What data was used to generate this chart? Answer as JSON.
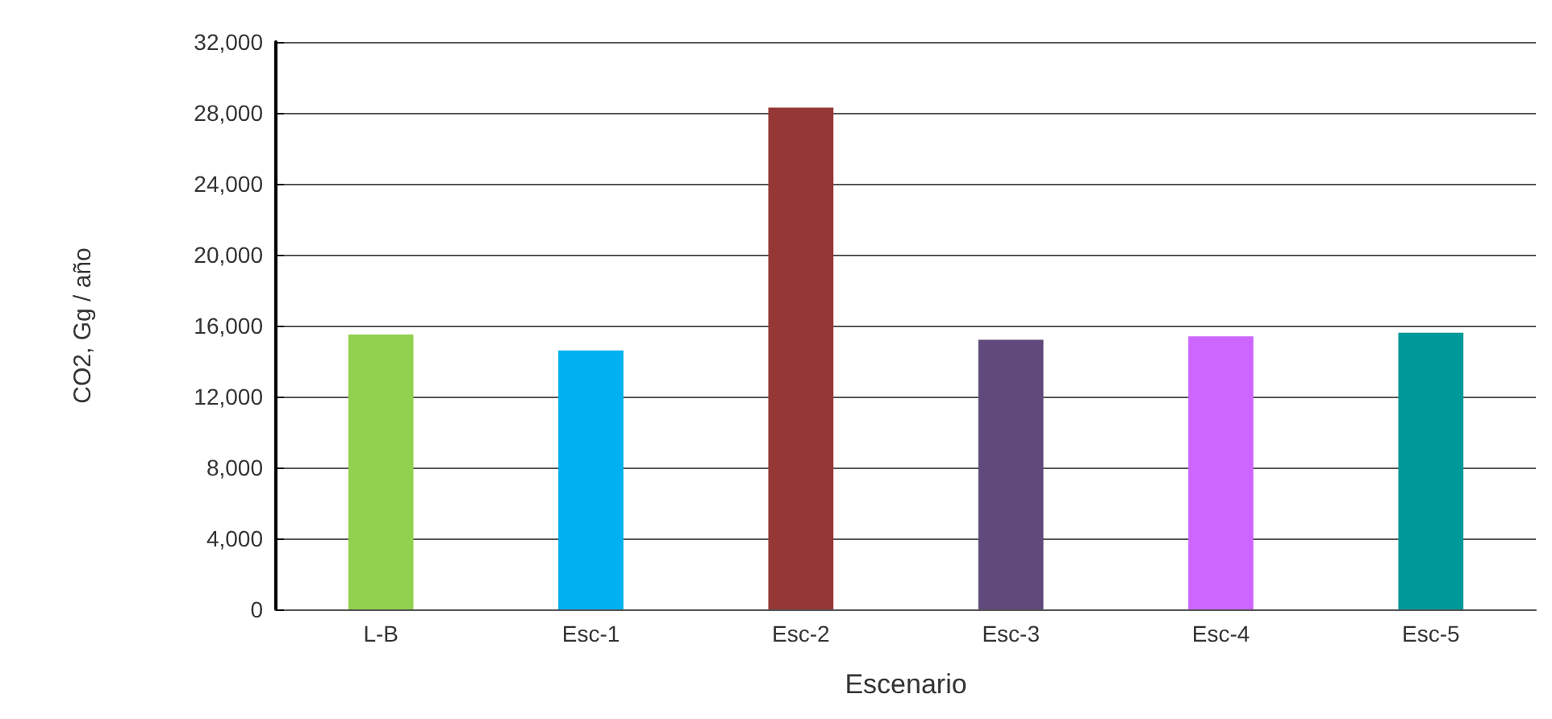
{
  "chart_data": {
    "type": "bar",
    "xlabel": "Escenario",
    "ylabel": "CO2, Gg / año",
    "categories": [
      "L-B",
      "Esc-1",
      "Esc-2",
      "Esc-3",
      "Esc-4",
      "Esc-5"
    ],
    "values": [
      15500,
      14600,
      28300,
      15200,
      15400,
      15600
    ],
    "colors": [
      "#92d050",
      "#00b0f0",
      "#953735",
      "#604a7b",
      "#cc66ff",
      "#009999"
    ],
    "ylim": [
      0,
      32000
    ],
    "yticks": [
      0,
      {
        "value": 4000,
        "label": "4,000"
      },
      {
        "value": 8000,
        "label": "8,000"
      },
      {
        "value": 12000,
        "label": "12,000"
      },
      {
        "value": 16000,
        "label": "16,000"
      },
      {
        "value": 20000,
        "label": "20,000"
      },
      {
        "value": 24000,
        "label": "24,000"
      },
      {
        "value": 28000,
        "label": "28,000"
      },
      {
        "value": 32000,
        "label": "32,000"
      }
    ],
    "grid": "y"
  }
}
